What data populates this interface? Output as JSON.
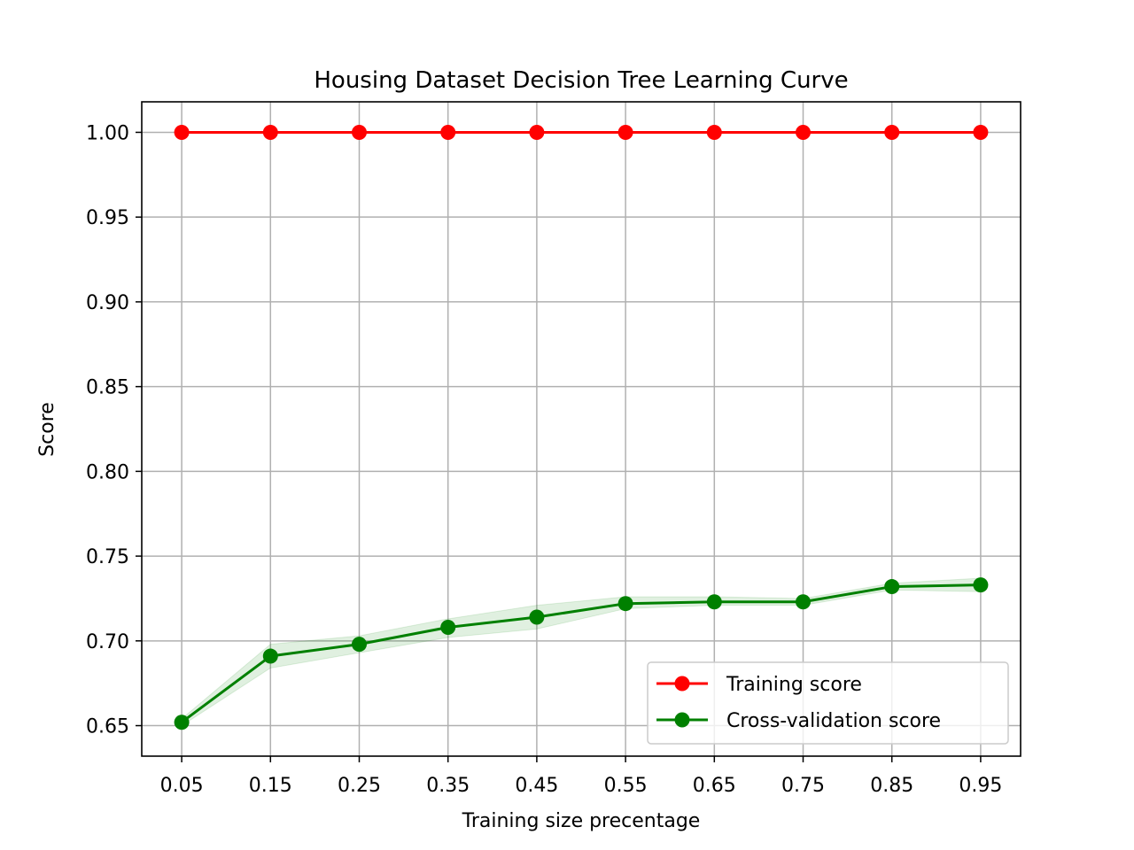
{
  "chart_data": {
    "type": "line",
    "title": "Housing Dataset Decision Tree Learning Curve",
    "xlabel": "Training size precentage",
    "ylabel": "Score",
    "x": [
      0.05,
      0.15,
      0.25,
      0.35,
      0.45,
      0.55,
      0.65,
      0.75,
      0.85,
      0.95
    ],
    "x_tick_labels": [
      "0.05",
      "0.15",
      "0.25",
      "0.35",
      "0.45",
      "0.55",
      "0.65",
      "0.75",
      "0.85",
      "0.95"
    ],
    "y_ticks": [
      0.65,
      0.7,
      0.75,
      0.8,
      0.85,
      0.9,
      0.95,
      1.0
    ],
    "y_tick_labels": [
      "0.65",
      "0.70",
      "0.75",
      "0.80",
      "0.85",
      "0.90",
      "0.95",
      "1.00"
    ],
    "xlim": [
      0.005,
      0.995
    ],
    "ylim": [
      0.632,
      1.018
    ],
    "grid": true,
    "legend_position": "lower-right",
    "series": [
      {
        "name": "Training score",
        "color": "#ff0000",
        "values": [
          1.0,
          1.0,
          1.0,
          1.0,
          1.0,
          1.0,
          1.0,
          1.0,
          1.0,
          1.0
        ]
      },
      {
        "name": "Cross-validation score",
        "color": "#008000",
        "values": [
          0.652,
          0.691,
          0.698,
          0.708,
          0.714,
          0.722,
          0.723,
          0.723,
          0.732,
          0.733
        ],
        "band_lower": [
          0.65,
          0.684,
          0.693,
          0.702,
          0.707,
          0.719,
          0.721,
          0.721,
          0.73,
          0.729
        ],
        "band_upper": [
          0.654,
          0.698,
          0.703,
          0.713,
          0.721,
          0.726,
          0.726,
          0.725,
          0.734,
          0.737
        ]
      }
    ]
  }
}
